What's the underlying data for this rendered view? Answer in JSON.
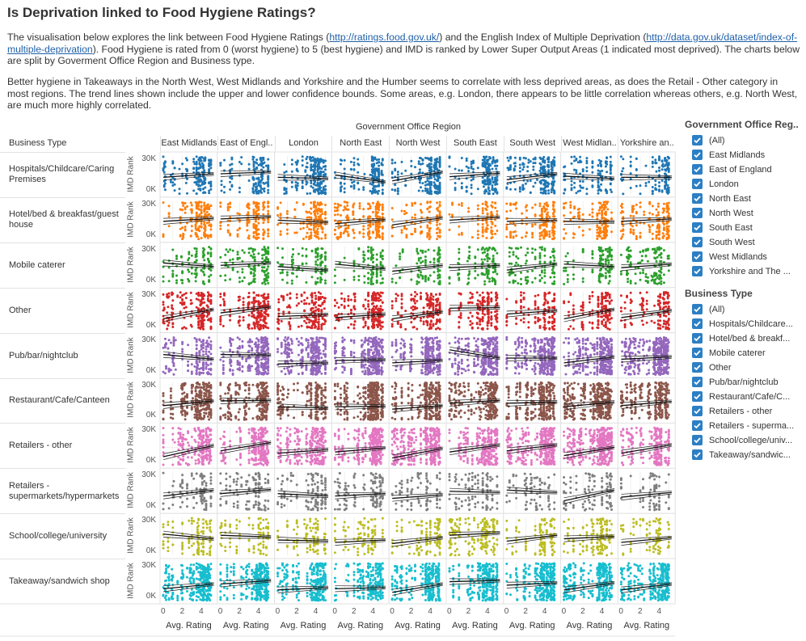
{
  "title": "Is Deprivation linked to Food Hygiene Ratings?",
  "intro": {
    "t1": "The visualisation below explores the link between Food Hygiene Ratings (",
    "link1": "http://ratings.food.gov.uk/",
    "t2": ") and the English Index of Multiple Deprivation (",
    "link2": "http://data.gov.uk/dataset/index-of-multiple-deprivation",
    "t3": "). Food Hygiene is rated from 0 (worst hygiene) to 5 (best hygiene) and IMD is ranked by Lower Super Output Areas (1 indicated most deprived). The charts below are split by Goverment Office Region and Business type."
  },
  "analysis": "Better hygiene in Takeaways in the North West, West Midlands and Yorkshire and the Humber seems to correlate with less deprived areas, as does the Retail - Other category in most regions. The trend lines shown include the upper and lower confidence bounds. Some areas, e.g. London, there appears to be little correlation whereas others, e.g. North West, are much more highly correlated.",
  "chart_data": {
    "type": "scatter",
    "column_title": "Government Office Region",
    "row_title": "Business Type",
    "columns": [
      "East Midlands",
      "East of Engl..",
      "London",
      "North East",
      "North West",
      "South East",
      "South West",
      "West Midlan..",
      "Yorkshire an.."
    ],
    "rows": [
      "Hospitals/Childcare/Caring Premises",
      "Hotel/bed & breakfast/guest house",
      "Mobile caterer",
      "Other",
      "Pub/bar/nightclub",
      "Restaurant/Cafe/Canteen",
      "Retailers - other",
      "Retailers - supermarkets/hypermarkets",
      "School/college/university",
      "Takeaway/sandwich shop"
    ],
    "row_colors": [
      "#1f77b4",
      "#ff7f0e",
      "#2ca02c",
      "#d62728",
      "#9467bd",
      "#8c564b",
      "#e377c2",
      "#7f7f7f",
      "#bcbd22",
      "#17becf"
    ],
    "xlabel": "Avg. Rating",
    "ylabel": "IMD Rank",
    "x_ticks": [
      "0",
      "2",
      "4"
    ],
    "xlim": [
      0,
      5.5
    ],
    "y_ticks": [
      "30K",
      "0K"
    ],
    "ylim": [
      0,
      32000
    ],
    "trend_lines": [
      [
        [
          14000,
          17000
        ],
        [
          17000,
          18500
        ],
        [
          14000,
          13000
        ],
        [
          16000,
          10000
        ],
        [
          11000,
          18500
        ],
        [
          14500,
          17500
        ],
        [
          12000,
          17000
        ],
        [
          15000,
          13000
        ],
        [
          14000,
          14000
        ]
      ],
      [
        [
          15000,
          17500
        ],
        [
          17000,
          19000
        ],
        [
          16000,
          14000
        ],
        [
          13000,
          16500
        ],
        [
          12000,
          18000
        ],
        [
          16000,
          18500
        ],
        [
          15000,
          16000
        ],
        [
          15000,
          14500
        ],
        [
          15000,
          17000
        ]
      ],
      [
        [
          18000,
          15000
        ],
        [
          16000,
          18000
        ],
        [
          15000,
          12000
        ],
        [
          17000,
          13000
        ],
        [
          11000,
          16000
        ],
        [
          14000,
          16000
        ],
        [
          12000,
          17000
        ],
        [
          17000,
          15000
        ],
        [
          14000,
          17000
        ]
      ],
      [
        [
          9000,
          17000
        ],
        [
          14000,
          19000
        ],
        [
          11000,
          12500
        ],
        [
          10000,
          13000
        ],
        [
          9000,
          15000
        ],
        [
          18000,
          18500
        ],
        [
          13000,
          16000
        ],
        [
          9000,
          17000
        ],
        [
          10000,
          16000
        ]
      ],
      [
        [
          17000,
          13000
        ],
        [
          17000,
          16500
        ],
        [
          9000,
          10000
        ],
        [
          12000,
          12500
        ],
        [
          10000,
          12000
        ],
        [
          21000,
          14000
        ],
        [
          14000,
          14000
        ],
        [
          10000,
          15000
        ],
        [
          13000,
          15000
        ]
      ],
      [
        [
          12000,
          16000
        ],
        [
          16000,
          16500
        ],
        [
          11000,
          10000
        ],
        [
          11000,
          11500
        ],
        [
          9000,
          12000
        ],
        [
          14000,
          16500
        ],
        [
          14000,
          15000
        ],
        [
          11000,
          15000
        ],
        [
          12000,
          15500
        ]
      ],
      [
        [
          7000,
          16500
        ],
        [
          12000,
          19000
        ],
        [
          10000,
          13000
        ],
        [
          11000,
          14500
        ],
        [
          6000,
          14000
        ],
        [
          11000,
          17000
        ],
        [
          12000,
          17000
        ],
        [
          8000,
          15000
        ],
        [
          10000,
          17000
        ]
      ],
      [
        [
          12000,
          17000
        ],
        [
          14000,
          17500
        ],
        [
          14000,
          12000
        ],
        [
          12000,
          14000
        ],
        [
          10000,
          13000
        ],
        [
          16000,
          15000
        ],
        [
          17000,
          15000
        ],
        [
          8000,
          17000
        ],
        [
          11000,
          15000
        ]
      ],
      [
        [
          18000,
          14000
        ],
        [
          17000,
          15500
        ],
        [
          13000,
          12000
        ],
        [
          11000,
          13000
        ],
        [
          10000,
          15000
        ],
        [
          17000,
          19000
        ],
        [
          12000,
          17000
        ],
        [
          14000,
          16000
        ],
        [
          11000,
          15000
        ]
      ],
      [
        [
          10000,
          14000
        ],
        [
          14000,
          17000
        ],
        [
          9000,
          11000
        ],
        [
          10000,
          11000
        ],
        [
          7000,
          14000
        ],
        [
          16000,
          17000
        ],
        [
          13000,
          15000
        ],
        [
          9000,
          15000
        ],
        [
          9000,
          14000
        ]
      ]
    ]
  },
  "legend_gor": {
    "title": "Government Office Reg..",
    "items": [
      "(All)",
      "East Midlands",
      "East of England",
      "London",
      "North East",
      "North West",
      "South East",
      "South West",
      "West Midlands",
      "Yorkshire and The ..."
    ]
  },
  "legend_bt": {
    "title": "Business Type",
    "items": [
      "(All)",
      "Hospitals/Childcare...",
      "Hotel/bed & breakf...",
      "Mobile caterer",
      "Other",
      "Pub/bar/nightclub",
      "Restaurant/Cafe/C...",
      "Retailers - other",
      "Retailers - superma...",
      "School/college/univ...",
      "Takeaway/sandwic..."
    ]
  },
  "checkbox_color": "#2d7fc4"
}
